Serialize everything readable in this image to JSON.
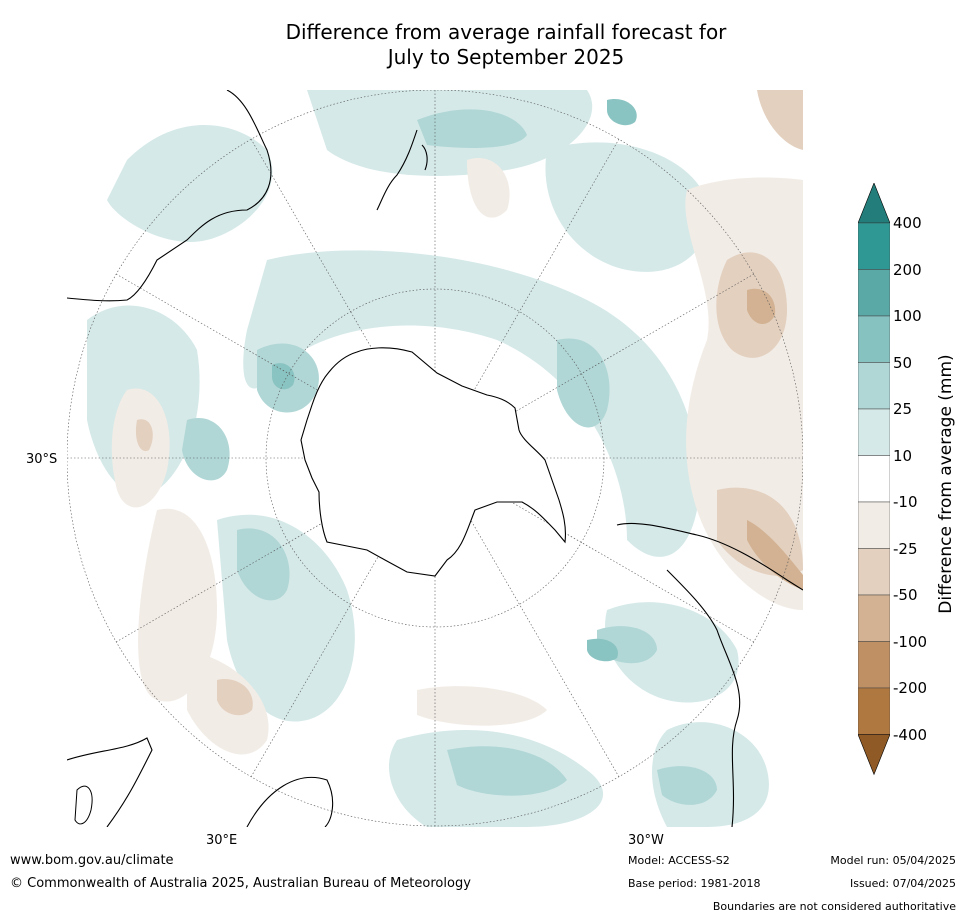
{
  "title_line1": "Difference from average rainfall forecast for",
  "title_line2": "July to September 2025",
  "map": {
    "lat_label": "30°S",
    "lon_labels": [
      "30°E",
      "30°W"
    ],
    "colors": {
      "teal_light": "#d5e9e8",
      "teal_mid": "#b0d7d6",
      "teal_dark": "#8ac4c2",
      "brown_light": "#f2ece6",
      "brown_mid": "#e3d0bf",
      "brown_dark": "#d2b292"
    }
  },
  "colorbar": {
    "title": "Difference from average (mm)",
    "ticks": [
      "400",
      "200",
      "100",
      "50",
      "25",
      "10",
      "-10",
      "-25",
      "-50",
      "-100",
      "-200",
      "-400"
    ],
    "colors": [
      "#237e7b",
      "#2f9895",
      "#5ba9a7",
      "#86c2c0",
      "#b0d7d6",
      "#d5e9e8",
      "#ffffff",
      "#f2ece6",
      "#e3d0bf",
      "#d2b292",
      "#bf9064",
      "#b07841",
      "#8f5a25"
    ]
  },
  "footer": {
    "website": "www.bom.gov.au/climate",
    "copyright": "© Commonwealth of Australia 2025, Australian Bureau of Meteorology",
    "model": "Model: ACCESS-S2",
    "base_period": "Base period: 1981-2018",
    "model_run": "Model run: 05/04/2025",
    "issued": "Issued: 07/04/2025",
    "disclaimer": "Boundaries are not considered authoritative"
  }
}
